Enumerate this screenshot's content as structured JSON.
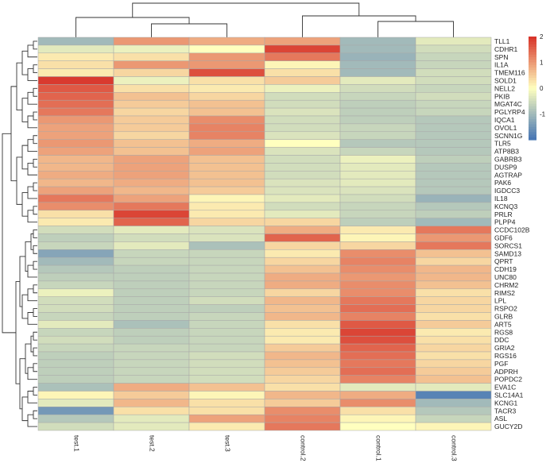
{
  "chart_data": {
    "type": "heatmap",
    "title": "",
    "columns": [
      "test.1",
      "test.2",
      "test.3",
      "control.2",
      "control.1",
      "control.3"
    ],
    "rows": [
      "TLL1",
      "CDHR1",
      "SPN",
      "IL1A",
      "TMEM116",
      "SOLD1",
      "NELL2",
      "PKIB",
      "MGAT4C",
      "PGLYRP4",
      "IQCA1",
      "OVOL1",
      "SCNN1G",
      "TLR5",
      "ATP8B3",
      "GABRB3",
      "DUSP9",
      "AGTRAP",
      "PAK6",
      "IGDCC3",
      "IL18",
      "KCNQ3",
      "PRLR",
      "PLPP4",
      "CCDC102B",
      "GDF6",
      "SORCS1",
      "SAMD13",
      "QPRT",
      "CDH19",
      "UNC80",
      "CHRM2",
      "RIMS2",
      "LPL",
      "RSPO2",
      "GLRB",
      "ART5",
      "RGS8",
      "DDC",
      "GRIA2",
      "RGS16",
      "PGF",
      "ADPRH",
      "POPDC2",
      "EVA1C",
      "SLC14A1",
      "KCNG1",
      "TACR3",
      "ASL",
      "GUCY2D"
    ],
    "values": [
      [
        -1.0,
        1.0,
        0.8,
        0.9,
        -1.0,
        -0.3
      ],
      [
        -0.3,
        -0.2,
        0.0,
        1.8,
        -1.0,
        -0.5
      ],
      [
        0.2,
        0.3,
        1.0,
        1.3,
        -1.1,
        -0.6
      ],
      [
        0.3,
        1.0,
        1.0,
        0.1,
        -1.0,
        -0.6
      ],
      [
        0.2,
        0.4,
        1.7,
        0.3,
        -1.0,
        -0.5
      ],
      [
        1.9,
        -0.2,
        0.3,
        0.5,
        -0.3,
        -0.5
      ],
      [
        1.6,
        0.3,
        0.2,
        -0.2,
        -0.5,
        -0.6
      ],
      [
        1.5,
        0.6,
        0.4,
        -0.5,
        -0.6,
        -0.5
      ],
      [
        1.4,
        0.5,
        0.6,
        -0.5,
        -0.7,
        -0.6
      ],
      [
        1.3,
        0.4,
        0.6,
        -0.4,
        -0.7,
        -0.6
      ],
      [
        1.0,
        0.5,
        1.1,
        -0.5,
        -0.7,
        -0.8
      ],
      [
        0.9,
        0.5,
        1.2,
        -0.5,
        -0.6,
        -0.8
      ],
      [
        0.9,
        0.4,
        1.2,
        -0.4,
        -0.6,
        -0.8
      ],
      [
        1.0,
        0.6,
        0.8,
        0.0,
        -0.8,
        -0.8
      ],
      [
        0.9,
        0.6,
        0.9,
        -0.4,
        -0.6,
        -0.8
      ],
      [
        0.7,
        0.9,
        0.6,
        -0.5,
        -0.2,
        -0.7
      ],
      [
        0.7,
        0.9,
        0.6,
        -0.5,
        -0.3,
        -0.8
      ],
      [
        0.8,
        0.9,
        0.6,
        -0.5,
        -0.3,
        -0.8
      ],
      [
        0.7,
        0.8,
        0.6,
        -0.4,
        -0.3,
        -0.8
      ],
      [
        0.9,
        0.7,
        0.5,
        -0.4,
        -0.4,
        -0.8
      ],
      [
        1.3,
        0.9,
        0.1,
        -0.3,
        -0.5,
        -1.1
      ],
      [
        1.1,
        1.3,
        0.2,
        -0.5,
        -0.6,
        -0.8
      ],
      [
        0.3,
        1.8,
        0.2,
        -0.3,
        -0.6,
        -0.7
      ],
      [
        0.2,
        1.5,
        0.4,
        0.4,
        -0.7,
        -1.0
      ],
      [
        -0.5,
        -0.3,
        -0.4,
        0.8,
        0.2,
        1.3
      ],
      [
        -0.7,
        -0.5,
        -0.4,
        1.5,
        0.1,
        1.0
      ],
      [
        -0.6,
        -0.3,
        -0.9,
        0.4,
        0.4,
        1.3
      ],
      [
        -1.3,
        -0.6,
        -0.6,
        0.2,
        1.1,
        0.6
      ],
      [
        -1.0,
        -0.6,
        -0.6,
        0.4,
        1.2,
        0.4
      ],
      [
        -0.8,
        -0.7,
        -0.6,
        0.6,
        1.1,
        0.7
      ],
      [
        -0.7,
        -0.7,
        -0.6,
        0.8,
        1.0,
        0.7
      ],
      [
        -0.6,
        -0.7,
        -0.6,
        0.8,
        1.1,
        0.6
      ],
      [
        -0.2,
        -0.7,
        -0.6,
        0.4,
        1.1,
        0.3
      ],
      [
        -0.5,
        -0.7,
        -0.5,
        0.7,
        1.3,
        0.4
      ],
      [
        -0.5,
        -0.7,
        -0.7,
        0.6,
        1.4,
        0.4
      ],
      [
        -0.6,
        -0.7,
        -0.6,
        0.7,
        1.2,
        0.3
      ],
      [
        -0.3,
        -0.9,
        -0.6,
        0.3,
        1.6,
        0.5
      ],
      [
        -0.6,
        -0.7,
        -0.6,
        0.2,
        1.8,
        0.2
      ],
      [
        -0.5,
        -0.7,
        -0.6,
        0.2,
        1.7,
        0.3
      ],
      [
        -0.6,
        -0.6,
        -0.6,
        0.5,
        1.5,
        0.4
      ],
      [
        -0.7,
        -0.6,
        -0.5,
        0.7,
        1.4,
        0.3
      ],
      [
        -0.7,
        -0.6,
        -0.5,
        0.6,
        1.3,
        0.4
      ],
      [
        -0.7,
        -0.6,
        -0.5,
        0.5,
        1.4,
        0.5
      ],
      [
        -0.7,
        -0.6,
        -0.5,
        0.4,
        1.2,
        0.6
      ],
      [
        -0.9,
        0.8,
        0.6,
        0.3,
        -0.3,
        -0.3
      ],
      [
        0.1,
        0.5,
        0.1,
        0.7,
        0.8,
        -1.8
      ],
      [
        -0.3,
        0.7,
        0.3,
        0.5,
        1.1,
        -1.0
      ],
      [
        -1.5,
        0.3,
        0.3,
        1.1,
        0.3,
        -0.8
      ],
      [
        -0.8,
        -0.3,
        0.9,
        1.2,
        0.1,
        -0.6
      ],
      [
        -0.5,
        -0.3,
        0.2,
        1.3,
        0.0,
        0.1
      ]
    ],
    "color_scale": {
      "min": -2,
      "max": 2,
      "low": "#4575b4",
      "mid": "#ffffbf",
      "high": "#d73027"
    },
    "legend": {
      "ticks": [
        2,
        1,
        0,
        -1
      ],
      "placement": "top-right"
    },
    "row_dendrogram": true,
    "column_dendrogram": true
  }
}
